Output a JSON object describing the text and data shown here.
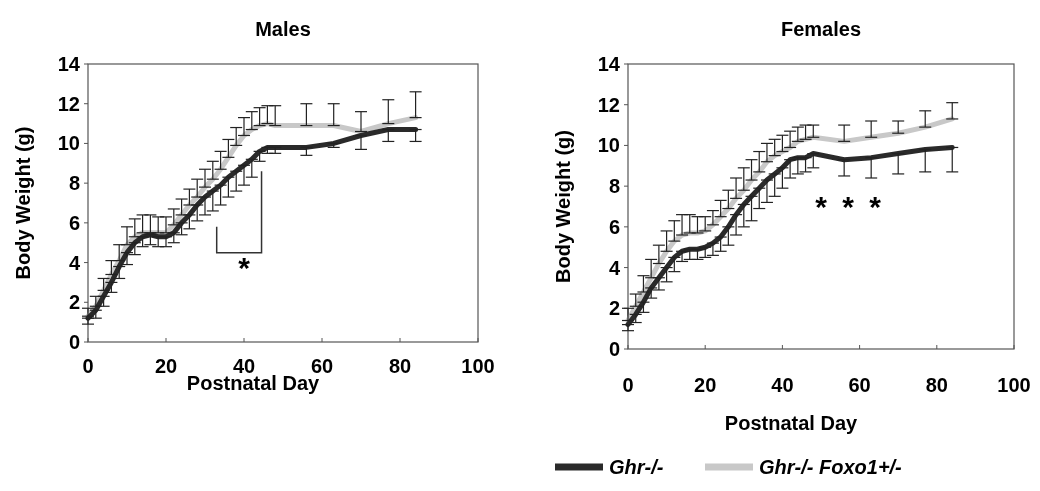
{
  "chart_data": [
    {
      "type": "line",
      "title": "Males",
      "xlabel": "Postnatal Day",
      "ylabel": "Body Weight (g)",
      "xlim": [
        0,
        100
      ],
      "xticks": [
        0,
        20,
        40,
        60,
        80,
        100
      ],
      "ylim": [
        0,
        14
      ],
      "yticks": [
        0,
        2,
        4,
        6,
        8,
        10,
        12,
        14
      ],
      "legend": false,
      "marker": "none",
      "line_style": "solid",
      "x": [
        0,
        2,
        4,
        6,
        8,
        10,
        12,
        14,
        16,
        18,
        20,
        22,
        24,
        26,
        28,
        30,
        32,
        34,
        36,
        38,
        40,
        42,
        44,
        46,
        48,
        56,
        63,
        70,
        77,
        84
      ],
      "series": [
        {
          "color": "#c8c8c8",
          "values": [
            1.3,
            1.8,
            2.6,
            3.4,
            4.1,
            4.9,
            5.3,
            5.5,
            5.5,
            5.5,
            5.5,
            5.9,
            6.4,
            6.9,
            7.3,
            7.8,
            8.2,
            8.7,
            9.3,
            9.9,
            10.4,
            10.7,
            10.9,
            11.0,
            10.9,
            10.9,
            10.9,
            10.6,
            11.0,
            11.3
          ],
          "errors": [
            [
              1.3,
              1.7
            ],
            [
              1.8,
              2.3
            ],
            [
              2.6,
              3.2
            ],
            [
              3.4,
              4.1
            ],
            [
              4.1,
              4.9
            ],
            [
              4.9,
              5.8
            ],
            [
              5.3,
              6.2
            ],
            [
              5.5,
              6.4
            ],
            [
              5.5,
              6.4
            ],
            [
              5.5,
              6.3
            ],
            [
              5.5,
              6.3
            ],
            [
              5.9,
              6.7
            ],
            [
              6.4,
              7.2
            ],
            [
              6.9,
              7.7
            ],
            [
              7.3,
              8.2
            ],
            [
              7.8,
              8.7
            ],
            [
              8.2,
              9.1
            ],
            [
              8.7,
              9.6
            ],
            [
              9.3,
              10.2
            ],
            [
              9.9,
              10.8
            ],
            [
              10.4,
              11.3
            ],
            [
              10.7,
              11.6
            ],
            [
              10.9,
              11.8
            ],
            [
              11.0,
              11.9
            ],
            [
              10.9,
              11.9
            ],
            [
              10.9,
              12.0
            ],
            [
              10.9,
              12.0
            ],
            [
              10.6,
              11.6
            ],
            [
              11.0,
              12.2
            ],
            [
              11.3,
              12.6
            ]
          ]
        },
        {
          "color": "#2a2a2a",
          "values": [
            1.2,
            1.6,
            2.3,
            3.0,
            3.8,
            4.5,
            5.0,
            5.3,
            5.4,
            5.3,
            5.3,
            5.5,
            6.0,
            6.4,
            6.9,
            7.3,
            7.6,
            7.9,
            8.3,
            8.6,
            8.9,
            9.2,
            9.6,
            9.8,
            9.8,
            9.8,
            10.0,
            10.4,
            10.7,
            10.7
          ],
          "errors": [
            [
              0.9,
              1.2
            ],
            [
              1.2,
              1.6
            ],
            [
              1.8,
              2.3
            ],
            [
              2.5,
              3.0
            ],
            [
              3.2,
              3.8
            ],
            [
              3.9,
              4.5
            ],
            [
              4.4,
              5.0
            ],
            [
              4.8,
              5.3
            ],
            [
              4.9,
              5.4
            ],
            [
              4.8,
              5.3
            ],
            [
              4.8,
              5.3
            ],
            [
              5.0,
              5.5
            ],
            [
              5.4,
              6.0
            ],
            [
              5.7,
              6.4
            ],
            [
              6.1,
              6.9
            ],
            [
              6.4,
              7.3
            ],
            [
              6.6,
              7.6
            ],
            [
              6.9,
              7.9
            ],
            [
              7.3,
              8.3
            ],
            [
              7.6,
              8.6
            ],
            [
              7.9,
              8.9
            ],
            [
              8.3,
              9.2
            ],
            [
              9.1,
              9.6
            ],
            [
              9.5,
              9.8
            ],
            [
              9.5,
              9.8
            ],
            [
              9.4,
              9.8
            ],
            [
              9.8,
              10.0
            ],
            [
              9.7,
              10.4
            ],
            [
              10.1,
              10.7
            ],
            [
              10.1,
              10.7
            ]
          ]
        }
      ],
      "annotations": [
        "*"
      ]
    },
    {
      "type": "line",
      "title": "Females",
      "xlabel": "Postnatal Day",
      "ylabel": "Body Weight (g)",
      "xlim": [
        0,
        100
      ],
      "xticks": [
        0,
        20,
        40,
        60,
        80,
        100
      ],
      "ylim": [
        0,
        14
      ],
      "yticks": [
        0,
        2,
        4,
        6,
        8,
        10,
        12,
        14
      ],
      "legend": "bottom",
      "marker": "none",
      "line_style": "solid",
      "x": [
        0,
        2,
        4,
        6,
        8,
        10,
        12,
        14,
        16,
        18,
        20,
        22,
        24,
        26,
        28,
        30,
        32,
        34,
        36,
        38,
        40,
        42,
        44,
        46,
        48,
        56,
        63,
        70,
        77,
        84
      ],
      "series": [
        {
          "name": "Ghr-/- Foxo1+/-",
          "color": "#c8c8c8",
          "values": [
            1.4,
            2.1,
            2.8,
            3.5,
            4.2,
            4.8,
            5.3,
            5.6,
            5.7,
            5.7,
            5.8,
            6.1,
            6.5,
            6.9,
            7.4,
            7.8,
            8.3,
            8.7,
            9.2,
            9.5,
            9.7,
            9.9,
            10.2,
            10.3,
            10.4,
            10.2,
            10.4,
            10.6,
            10.9,
            11.3
          ],
          "errors": [
            [
              1.4,
              2.0
            ],
            [
              2.1,
              2.7
            ],
            [
              2.8,
              3.6
            ],
            [
              3.5,
              4.4
            ],
            [
              4.2,
              5.1
            ],
            [
              4.8,
              5.8
            ],
            [
              5.3,
              6.3
            ],
            [
              5.6,
              6.6
            ],
            [
              5.7,
              6.6
            ],
            [
              5.7,
              6.5
            ],
            [
              5.8,
              6.5
            ],
            [
              6.1,
              6.8
            ],
            [
              6.5,
              7.3
            ],
            [
              6.9,
              7.8
            ],
            [
              7.4,
              8.4
            ],
            [
              7.8,
              8.9
            ],
            [
              8.3,
              9.3
            ],
            [
              8.7,
              9.7
            ],
            [
              9.2,
              10.1
            ],
            [
              9.5,
              10.3
            ],
            [
              9.7,
              10.5
            ],
            [
              9.9,
              10.7
            ],
            [
              10.2,
              10.9
            ],
            [
              10.3,
              11.0
            ],
            [
              10.4,
              11.0
            ],
            [
              10.2,
              11.0
            ],
            [
              10.4,
              11.2
            ],
            [
              10.6,
              11.2
            ],
            [
              10.9,
              11.7
            ],
            [
              11.3,
              12.1
            ]
          ]
        },
        {
          "name": "Ghr-/-",
          "color": "#2a2a2a",
          "values": [
            1.2,
            1.7,
            2.3,
            3.0,
            3.5,
            4.0,
            4.5,
            4.8,
            4.9,
            4.9,
            5.0,
            5.2,
            5.5,
            6.0,
            6.6,
            7.1,
            7.5,
            7.9,
            8.3,
            8.6,
            8.9,
            9.3,
            9.4,
            9.4,
            9.6,
            9.3,
            9.4,
            9.6,
            9.8,
            9.9
          ],
          "errors": [
            [
              0.9,
              1.2
            ],
            [
              1.3,
              1.7
            ],
            [
              1.8,
              2.3
            ],
            [
              2.5,
              3.0
            ],
            [
              2.9,
              3.5
            ],
            [
              3.3,
              4.0
            ],
            [
              3.8,
              4.5
            ],
            [
              4.3,
              4.8
            ],
            [
              4.4,
              4.9
            ],
            [
              4.4,
              4.9
            ],
            [
              4.5,
              5.0
            ],
            [
              4.6,
              5.2
            ],
            [
              4.8,
              5.5
            ],
            [
              5.1,
              6.0
            ],
            [
              5.6,
              6.6
            ],
            [
              6.0,
              7.1
            ],
            [
              6.3,
              7.5
            ],
            [
              6.9,
              7.9
            ],
            [
              7.2,
              8.3
            ],
            [
              7.5,
              8.6
            ],
            [
              7.9,
              8.9
            ],
            [
              8.4,
              9.3
            ],
            [
              8.6,
              9.4
            ],
            [
              8.7,
              9.4
            ],
            [
              8.9,
              9.6
            ],
            [
              8.5,
              9.3
            ],
            [
              8.4,
              9.4
            ],
            [
              8.6,
              9.6
            ],
            [
              8.7,
              9.8
            ],
            [
              8.7,
              9.9
            ]
          ]
        }
      ],
      "annotations": [
        "*",
        "*",
        "*"
      ]
    }
  ]
}
